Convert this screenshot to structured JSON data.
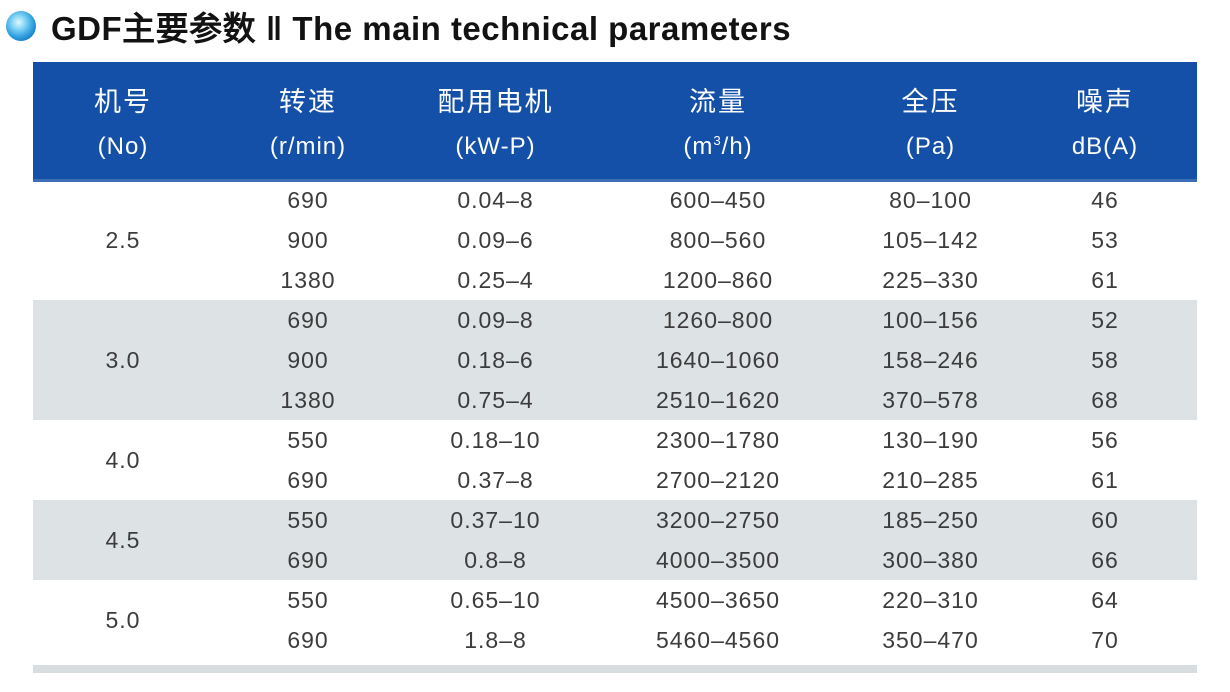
{
  "title": {
    "full": "GDF主要参数 ‖ The main technical parameters"
  },
  "colors": {
    "header_bg": "#1450a8",
    "header_text": "#ffffff",
    "row_shaded": "#dde2e5",
    "body_text": "#3c3c3c",
    "bullet_blue": "#1583cc"
  },
  "icons": {
    "bullet": "blue-sphere-bullet-icon"
  },
  "table": {
    "columns": [
      {
        "name": "机号",
        "unit": "(No)"
      },
      {
        "name": "转速",
        "unit": "(r/min)"
      },
      {
        "name": "配用电机",
        "unit": "(kW-P)"
      },
      {
        "name": "流量",
        "unit_prefix": "(m",
        "unit_sup": "3",
        "unit_suffix": "/h)"
      },
      {
        "name": "全压",
        "unit": "(Pa)"
      },
      {
        "name": "噪声",
        "unit": "dB(A)"
      }
    ],
    "groups": [
      {
        "no": "2.5",
        "rows": [
          {
            "speed": "690",
            "motor": "0.04–8",
            "flow": "600–450",
            "pressure": "80–100",
            "noise": "46"
          },
          {
            "speed": "900",
            "motor": "0.09–6",
            "flow": "800–560",
            "pressure": "105–142",
            "noise": "53"
          },
          {
            "speed": "1380",
            "motor": "0.25–4",
            "flow": "1200–860",
            "pressure": "225–330",
            "noise": "61"
          }
        ]
      },
      {
        "no": "3.0",
        "rows": [
          {
            "speed": "690",
            "motor": "0.09–8",
            "flow": "1260–800",
            "pressure": "100–156",
            "noise": "52"
          },
          {
            "speed": "900",
            "motor": "0.18–6",
            "flow": "1640–1060",
            "pressure": "158–246",
            "noise": "58"
          },
          {
            "speed": "1380",
            "motor": "0.75–4",
            "flow": "2510–1620",
            "pressure": "370–578",
            "noise": "68"
          }
        ]
      },
      {
        "no": "4.0",
        "rows": [
          {
            "speed": "550",
            "motor": "0.18–10",
            "flow": "2300–1780",
            "pressure": "130–190",
            "noise": "56"
          },
          {
            "speed": "690",
            "motor": "0.37–8",
            "flow": "2700–2120",
            "pressure": "210–285",
            "noise": "61"
          }
        ]
      },
      {
        "no": "4.5",
        "rows": [
          {
            "speed": "550",
            "motor": "0.37–10",
            "flow": "3200–2750",
            "pressure": "185–250",
            "noise": "60"
          },
          {
            "speed": "690",
            "motor": "0.8–8",
            "flow": "4000–3500",
            "pressure": "300–380",
            "noise": "66"
          }
        ]
      },
      {
        "no": "5.0",
        "rows": [
          {
            "speed": "550",
            "motor": "0.65–10",
            "flow": "4500–3650",
            "pressure": "220–310",
            "noise": "64"
          },
          {
            "speed": "690",
            "motor": "1.8–8",
            "flow": "5460–4560",
            "pressure": "350–470",
            "noise": "70"
          }
        ]
      }
    ]
  }
}
